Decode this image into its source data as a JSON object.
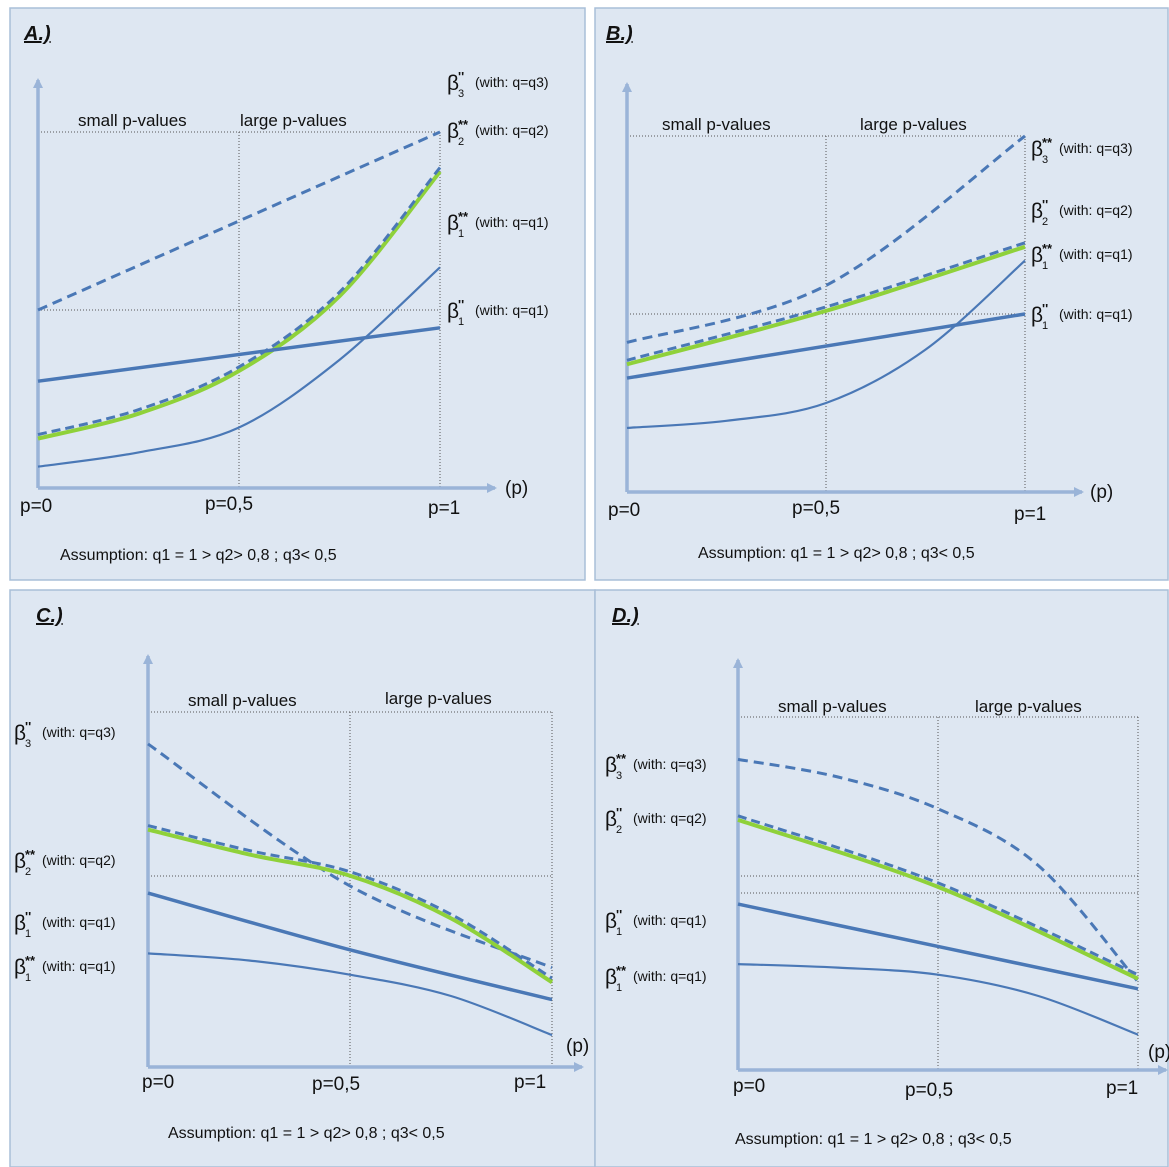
{
  "panels": [
    {
      "label": "A.)",
      "region_small": "small p-values",
      "region_large": "large p-values",
      "tick_p0": "p=0",
      "tick_p05": "p=0,5",
      "tick_p1": "p=1",
      "axis_label": "(p)",
      "assumption": "Assumption: q1 = 1 > q2> 0,8    ;   q3< 0,5",
      "curves": [
        {
          "beta": "β",
          "mark": "''",
          "sub": "3",
          "cond": "(with: q=q3)",
          "style": "dashed",
          "values": [
            0.5,
            1.0
          ]
        },
        {
          "beta": "β",
          "mark": "**",
          "sub": "2",
          "cond": "(with: q=q2)",
          "style": "dashed+green",
          "values": [
            0.15,
            0.22,
            0.34,
            0.55,
            0.9
          ]
        },
        {
          "beta": "β",
          "mark": "**",
          "sub": "1",
          "cond": "(with: q=q1)",
          "style": "solid-thin",
          "values": [
            0.06,
            0.1,
            0.17,
            0.36,
            0.62
          ]
        },
        {
          "beta": "β",
          "mark": "''",
          "sub": "1",
          "cond": "(with: q=q1)",
          "style": "solid-thick",
          "values": [
            0.3,
            0.45
          ]
        }
      ]
    },
    {
      "label": "B.)",
      "region_small": "small p-values",
      "region_large": "large p-values",
      "tick_p0": "p=0",
      "tick_p05": "p=0,5",
      "tick_p1": "p=1",
      "axis_label": "(p)",
      "assumption": "Assumption: q1 = 1 > q2> 0,8    ;   q3< 0,5",
      "curves": [
        {
          "beta": "β",
          "mark": "**",
          "sub": "3",
          "cond": "(with: q=q3)",
          "style": "dashed",
          "values": [
            0.42,
            0.58,
            1.0
          ]
        },
        {
          "beta": "β",
          "mark": "''",
          "sub": "2",
          "cond": "(with: q=q2)",
          "style": "dashed+green",
          "values": [
            0.37,
            0.52,
            0.7
          ]
        },
        {
          "beta": "β",
          "mark": "**",
          "sub": "1",
          "cond": "(with: q=q1)",
          "style": "solid-thin",
          "values": [
            0.18,
            0.2,
            0.25,
            0.4,
            0.65
          ]
        },
        {
          "beta": "β",
          "mark": "''",
          "sub": "1",
          "cond": "(with: q=q1)",
          "style": "solid-thick",
          "values": [
            0.32,
            0.5
          ]
        }
      ]
    },
    {
      "label": "C.)",
      "region_small": "small p-values",
      "region_large": "large p-values",
      "tick_p0": "p=0",
      "tick_p05": "p=0,5",
      "tick_p1": "p=1",
      "axis_label": "(p)",
      "assumption": "Assumption: q1 = 1 > q2> 0,8    ;   q3< 0,5",
      "curves": [
        {
          "beta": "β",
          "mark": "''",
          "sub": "3",
          "cond": "(with: q=q3)",
          "style": "dashed",
          "values": [
            0.91,
            0.51,
            0.28
          ]
        },
        {
          "beta": "β",
          "mark": "**",
          "sub": "2",
          "cond": "(with: q=q2)",
          "style": "dashed+green",
          "values": [
            0.68,
            0.61,
            0.55,
            0.43,
            0.25
          ]
        },
        {
          "beta": "β",
          "mark": "''",
          "sub": "1",
          "cond": "(with: q=q1)",
          "style": "solid-thick",
          "values": [
            0.49,
            0.33,
            0.19
          ]
        },
        {
          "beta": "β",
          "mark": "**",
          "sub": "1",
          "cond": "(with: q=q1)",
          "style": "solid-thin",
          "values": [
            0.32,
            0.3,
            0.26,
            0.2,
            0.09
          ]
        }
      ]
    },
    {
      "label": "D.)",
      "region_small": "small p-values",
      "region_large": "large p-values",
      "tick_p0": "p=0",
      "tick_p05": "p=0,5",
      "tick_p1": "p=1",
      "axis_label": "(p)",
      "assumption": "Assumption: q1 = 1 > q2> 0,8    ;   q3< 0,5",
      "curves": [
        {
          "beta": "β",
          "mark": "**",
          "sub": "3",
          "cond": "(with: q=q3)",
          "style": "dashed",
          "values": [
            0.88,
            0.83,
            0.74,
            0.58,
            0.25
          ]
        },
        {
          "beta": "β",
          "mark": "''",
          "sub": "2",
          "cond": "(with: q=q2)",
          "style": "dashed+green",
          "values": [
            0.72,
            0.53,
            0.27
          ]
        },
        {
          "beta": "β",
          "mark": "''",
          "sub": "1",
          "cond": "(with: q=q1)",
          "style": "solid-thick",
          "values": [
            0.47,
            0.35,
            0.23
          ]
        },
        {
          "beta": "β",
          "mark": "**",
          "sub": "1",
          "cond": "(with: q=q1)",
          "style": "solid-thin",
          "values": [
            0.3,
            0.29,
            0.27,
            0.21,
            0.1
          ]
        }
      ]
    }
  ]
}
